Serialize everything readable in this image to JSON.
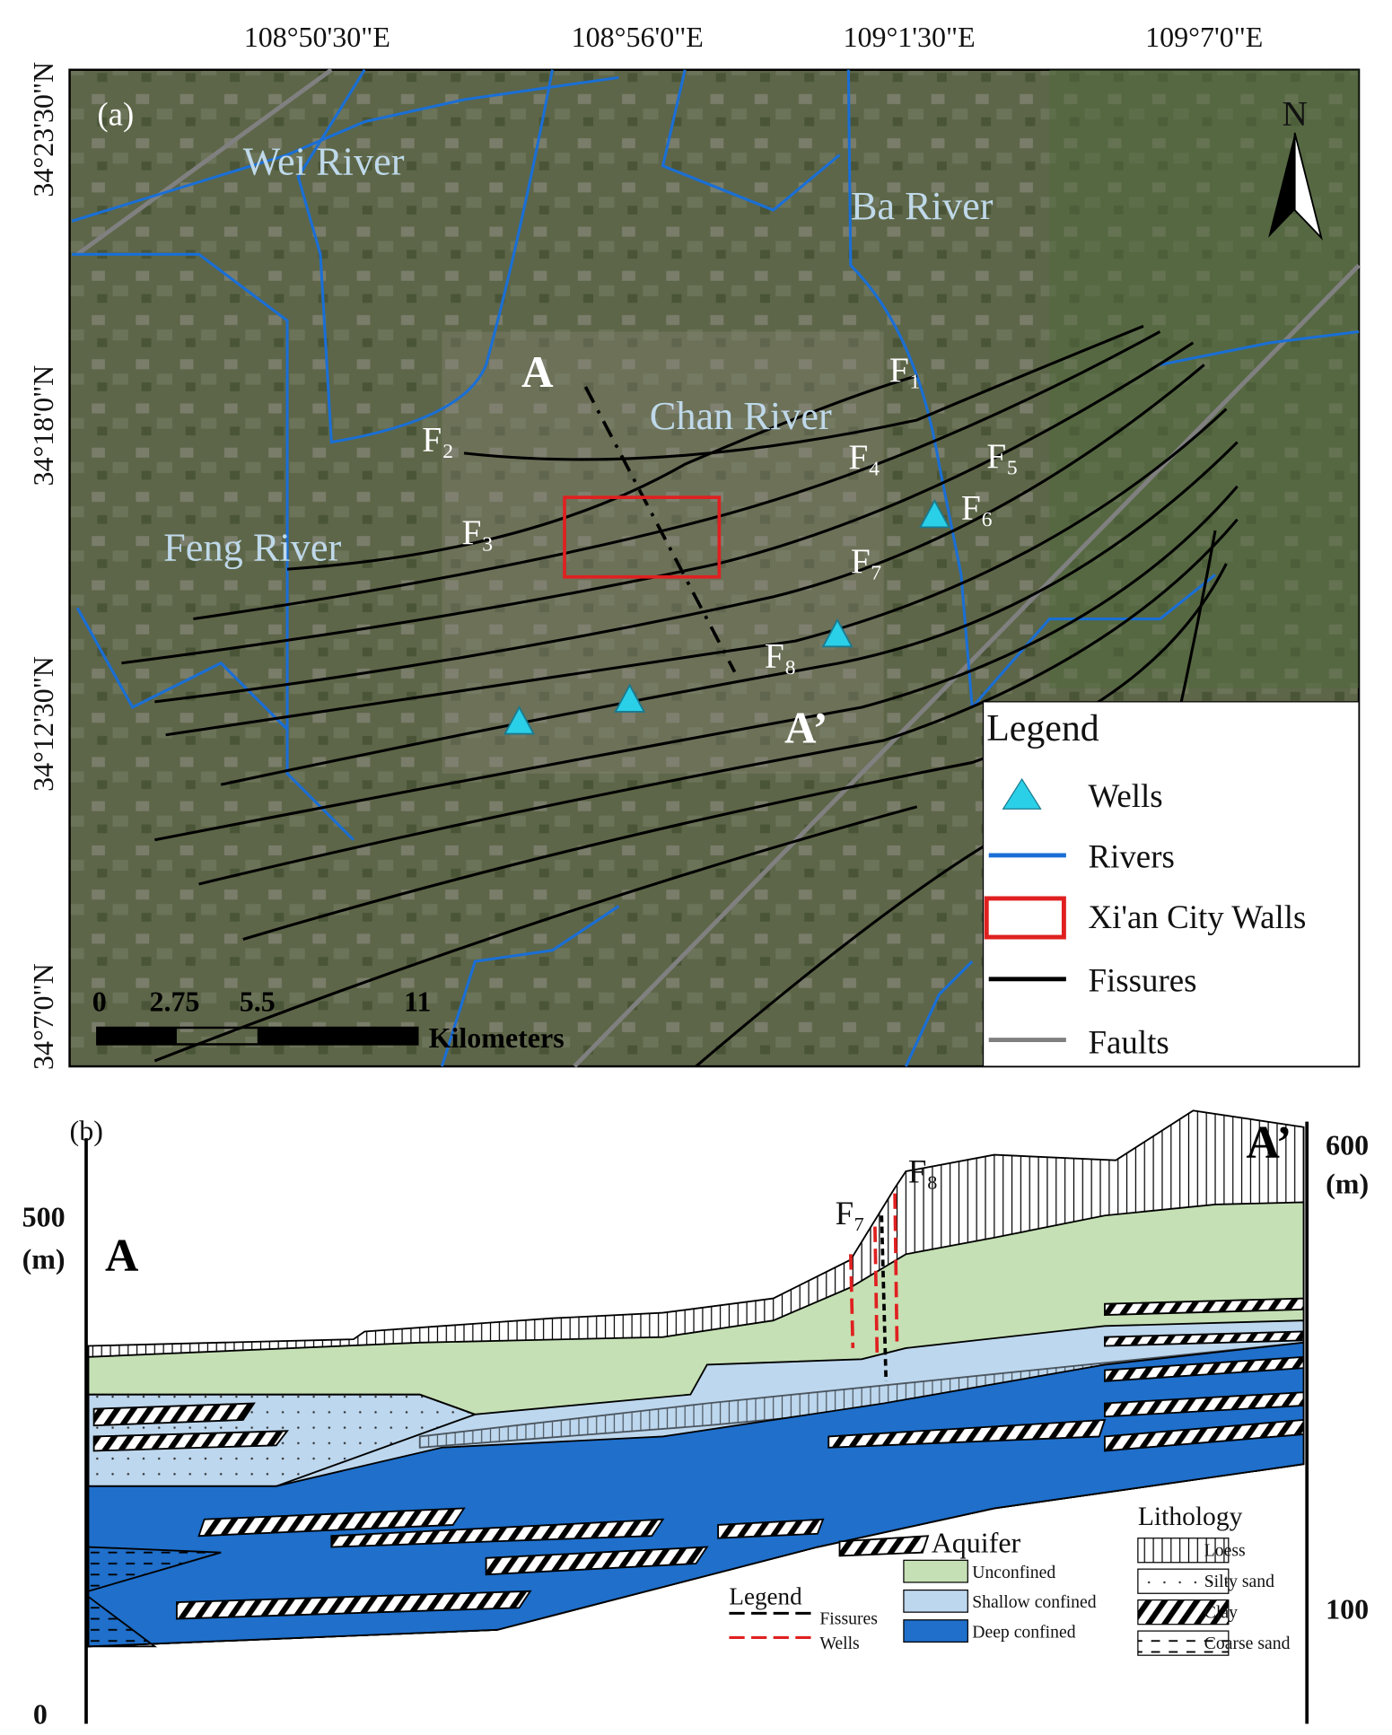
{
  "panel_a": {
    "label": "(a)",
    "lon_labels": [
      "108°50'30\"E",
      "108°56'0\"E",
      "109°1'30\"E",
      "109°7'0\"E"
    ],
    "lat_labels": [
      "34°23'30\"N",
      "34°18'0\"N",
      "34°12'30\"N",
      "34°7'0\"N"
    ],
    "rivers": [
      "Wei River",
      "Ba River",
      "Chan River",
      "Feng River"
    ],
    "fissures": [
      "F₁",
      "F₂",
      "F₃",
      "F₄",
      "F₅",
      "F₆",
      "F₇",
      "F₈"
    ],
    "section": [
      "A",
      "A’"
    ],
    "north": "N",
    "scale": [
      "0",
      "2.75",
      "5.5",
      "11",
      "Kilometers"
    ],
    "legend": {
      "title": "Legend",
      "items": [
        "Wells",
        "Rivers",
        "Xi'an City Walls",
        "Fissures",
        "Faults"
      ]
    }
  },
  "panel_b": {
    "label": "(b)",
    "section": [
      "A",
      "A’"
    ],
    "left_axis": [
      "500",
      "(m)",
      "0"
    ],
    "right_axis": [
      "600",
      "(m)",
      "100"
    ],
    "fissures": [
      "F₇",
      "F₈"
    ],
    "legend": {
      "title": "Legend",
      "items": [
        "Fissures",
        "Wells"
      ]
    },
    "aquifer": {
      "title": "Aquifer",
      "items": [
        "Unconfined",
        "Shallow confined",
        "Deep confined"
      ]
    },
    "lithology": {
      "title": "Lithology",
      "items": [
        "Loess",
        "Silty sand",
        "Clay",
        "Coarse sand"
      ]
    }
  }
}
